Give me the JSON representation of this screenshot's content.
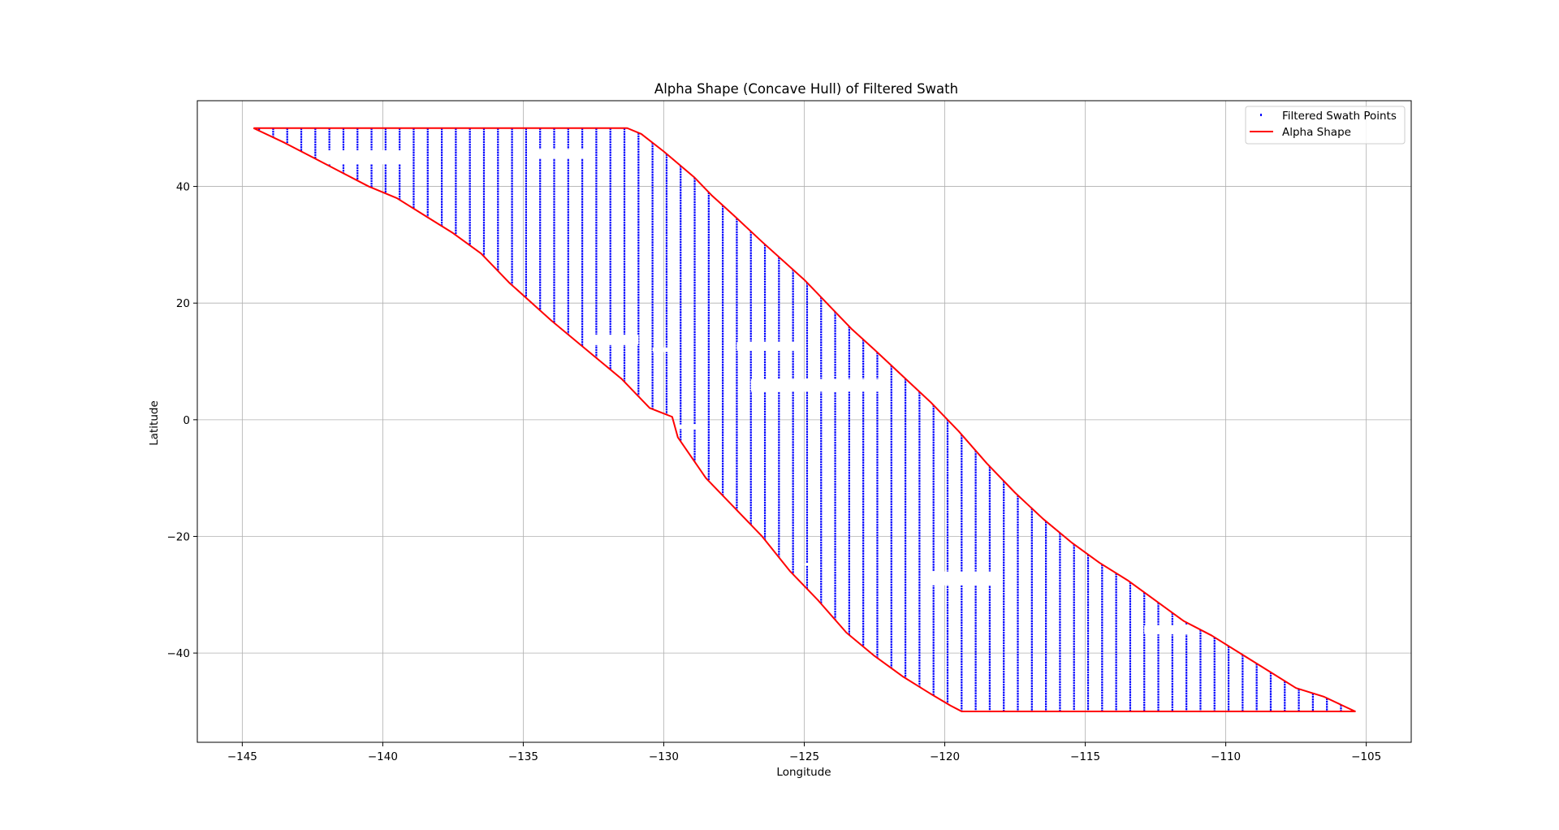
{
  "chart_data": {
    "type": "scatter",
    "title": "Alpha Shape (Concave Hull) of Filtered Swath",
    "xlabel": "Longitude",
    "ylabel": "Latitude",
    "xlim": [
      -146.6,
      -103.4
    ],
    "ylim": [
      -55.3,
      54.7
    ],
    "xticks": [
      -145,
      -140,
      -135,
      -130,
      -125,
      -120,
      -115,
      -110,
      -105
    ],
    "xtick_labels": [
      "−145",
      "−140",
      "−135",
      "−130",
      "−125",
      "−120",
      "−115",
      "−110",
      "−105"
    ],
    "yticks": [
      -40,
      -20,
      0,
      20,
      40
    ],
    "ytick_labels": [
      "−40",
      "−20",
      "0",
      "20",
      "40"
    ],
    "grid": true,
    "legend_position": "top-right",
    "series": [
      {
        "name": "Filtered Swath Points",
        "kind": "vertical point columns",
        "color": "#0000ff",
        "x_start": -144.4,
        "x_end": -105.4,
        "column_spacing": 0.5
      },
      {
        "name": "Alpha Shape",
        "kind": "line",
        "color": "#ff0000",
        "points": [
          [
            -144.6,
            50
          ],
          [
            -131.3,
            50
          ],
          [
            -130.8,
            49
          ],
          [
            -130,
            46
          ],
          [
            -128.9,
            41.5
          ],
          [
            -128.3,
            38.5
          ],
          [
            -127.5,
            35
          ],
          [
            -126.5,
            30.5
          ],
          [
            -125,
            24
          ],
          [
            -124,
            19
          ],
          [
            -123.3,
            15.5
          ],
          [
            -122.5,
            12
          ],
          [
            -121.5,
            7.5
          ],
          [
            -120.5,
            3
          ],
          [
            -119.5,
            -2
          ],
          [
            -118.5,
            -7.5
          ],
          [
            -117.5,
            -12.5
          ],
          [
            -116.5,
            -17
          ],
          [
            -115.5,
            -21
          ],
          [
            -114.5,
            -24.5
          ],
          [
            -113.5,
            -27.5
          ],
          [
            -112.5,
            -31
          ],
          [
            -111.5,
            -34.5
          ],
          [
            -110.5,
            -37
          ],
          [
            -109.5,
            -40
          ],
          [
            -108.5,
            -43
          ],
          [
            -107.5,
            -46
          ],
          [
            -106.5,
            -47.5
          ],
          [
            -105.4,
            -50
          ],
          [
            -119.4,
            -50
          ],
          [
            -119.8,
            -49
          ],
          [
            -120.5,
            -47
          ],
          [
            -121.5,
            -44
          ],
          [
            -122.5,
            -40.5
          ],
          [
            -123.5,
            -36.5
          ],
          [
            -124.5,
            -31
          ],
          [
            -125.5,
            -26
          ],
          [
            -126.5,
            -20
          ],
          [
            -127.5,
            -15
          ],
          [
            -128.5,
            -10
          ],
          [
            -129.5,
            -3
          ],
          [
            -129.7,
            0.5
          ],
          [
            -130.5,
            2
          ],
          [
            -131.5,
            7
          ],
          [
            -132.5,
            11
          ],
          [
            -134,
            17
          ],
          [
            -135.5,
            23.5
          ],
          [
            -136.5,
            28.5
          ],
          [
            -137.5,
            32
          ],
          [
            -138.5,
            35
          ],
          [
            -139.5,
            38
          ],
          [
            -140.5,
            40
          ],
          [
            -141.5,
            42.5
          ],
          [
            -142.5,
            45
          ],
          [
            -143.5,
            47.5
          ],
          [
            -144.6,
            50
          ]
        ]
      }
    ],
    "gaps": [
      {
        "x0": -142.0,
        "x1": -139.0,
        "y0": 43.8,
        "y1": 46.2
      },
      {
        "x0": -134.6,
        "x1": -132.8,
        "y0": 44.8,
        "y1": 46.4
      },
      {
        "x0": -132.8,
        "x1": -130.9,
        "y0": 12.8,
        "y1": 14.6
      },
      {
        "x0": -130.4,
        "x1": -129.6,
        "y0": 11.6,
        "y1": 12.4
      },
      {
        "x0": -127.4,
        "x1": -125.3,
        "y0": 11.8,
        "y1": 13.4
      },
      {
        "x0": -126.9,
        "x1": -122.0,
        "y0": 4.8,
        "y1": 7.0
      },
      {
        "x0": -129.6,
        "x1": -128.8,
        "y0": -1.6,
        "y1": -0.8
      },
      {
        "x0": -125.0,
        "x1": -124.6,
        "y0": -25.0,
        "y1": -24.6
      },
      {
        "x0": -120.5,
        "x1": -118.2,
        "y0": -28.4,
        "y1": -26.0
      },
      {
        "x0": -112.9,
        "x1": -111.0,
        "y0": -36.8,
        "y1": -35.2
      }
    ]
  }
}
